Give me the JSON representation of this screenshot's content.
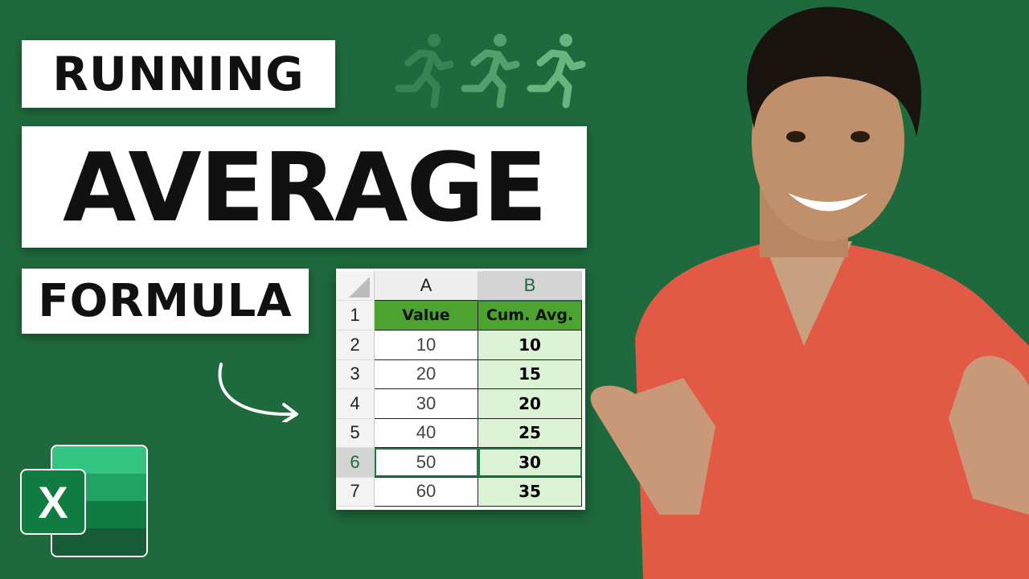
{
  "title": {
    "line1": "RUNNING",
    "line2": "AVERAGE",
    "line3": "FORMULA"
  },
  "spreadsheet": {
    "columns": [
      "A",
      "B"
    ],
    "row_numbers": [
      "1",
      "2",
      "3",
      "4",
      "5",
      "6",
      "7"
    ],
    "headers": [
      "Value",
      "Cum. Avg."
    ],
    "rows": [
      {
        "value": "10",
        "avg": "10"
      },
      {
        "value": "20",
        "avg": "15"
      },
      {
        "value": "30",
        "avg": "20"
      },
      {
        "value": "40",
        "avg": "25"
      },
      {
        "value": "50",
        "avg": "30"
      },
      {
        "value": "60",
        "avg": "35"
      }
    ],
    "active_row": "6"
  },
  "logo": {
    "letter": "X"
  },
  "colors": {
    "background": "#1f6a3d",
    "header_green": "#4ca32f",
    "avg_fill": "#dcf2d4",
    "shirt": "#e25a45"
  },
  "icons": [
    "running-person-icon",
    "running-person-icon",
    "running-person-icon",
    "curved-arrow-icon",
    "excel-logo-icon"
  ]
}
